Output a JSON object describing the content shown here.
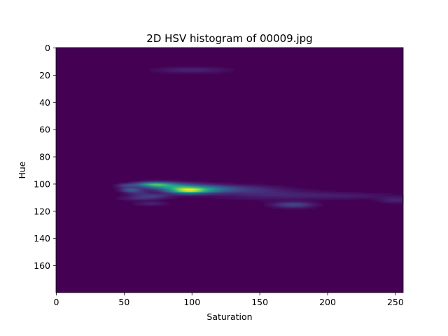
{
  "chart_data": {
    "type": "heatmap",
    "title": "2D HSV histogram of 00009.jpg",
    "xlabel": "Saturation",
    "ylabel": "Hue",
    "xlim": [
      0,
      256
    ],
    "ylim": [
      180,
      0
    ],
    "xticks": [
      0,
      50,
      100,
      150,
      200,
      250
    ],
    "yticks": [
      0,
      20,
      40,
      60,
      80,
      100,
      120,
      140,
      160
    ],
    "colormap": "viridis",
    "background_color": "#440154",
    "grid": false,
    "legend": "none",
    "hotspots": [
      {
        "hue": 16.5,
        "saturation": 100,
        "hue_spread": 1.6,
        "sat_spread": 18,
        "intensity": 0.1
      },
      {
        "hue": 100.5,
        "saturation": 72,
        "hue_spread": 1.2,
        "sat_spread": 9,
        "intensity": 0.5
      },
      {
        "hue": 102,
        "saturation": 85,
        "hue_spread": 1.8,
        "sat_spread": 14,
        "intensity": 0.45
      },
      {
        "hue": 105,
        "saturation": 97,
        "hue_spread": 1.6,
        "sat_spread": 10,
        "intensity": 0.72
      },
      {
        "hue": 104,
        "saturation": 112,
        "hue_spread": 2,
        "sat_spread": 14,
        "intensity": 0.35
      },
      {
        "hue": 104,
        "saturation": 140,
        "hue_spread": 2,
        "sat_spread": 18,
        "intensity": 0.12
      },
      {
        "hue": 108,
        "saturation": 160,
        "hue_spread": 2.5,
        "sat_spread": 28,
        "intensity": 0.1
      },
      {
        "hue": 109,
        "saturation": 215,
        "hue_spread": 1.5,
        "sat_spread": 25,
        "intensity": 0.07
      },
      {
        "hue": 112,
        "saturation": 250,
        "hue_spread": 1.5,
        "sat_spread": 8,
        "intensity": 0.1
      },
      {
        "hue": 115.5,
        "saturation": 175,
        "hue_spread": 1.5,
        "sat_spread": 10,
        "intensity": 0.22
      },
      {
        "hue": 101.5,
        "saturation": 52,
        "hue_spread": 1,
        "sat_spread": 5,
        "intensity": 0.18
      },
      {
        "hue": 104.5,
        "saturation": 55,
        "hue_spread": 1,
        "sat_spread": 5,
        "intensity": 0.3
      },
      {
        "hue": 106.5,
        "saturation": 60,
        "hue_spread": 1,
        "sat_spread": 6,
        "intensity": 0.12
      },
      {
        "hue": 109,
        "saturation": 70,
        "hue_spread": 1.2,
        "sat_spread": 10,
        "intensity": 0.18
      },
      {
        "hue": 111,
        "saturation": 62,
        "hue_spread": 1,
        "sat_spread": 10,
        "intensity": 0.1
      },
      {
        "hue": 114.5,
        "saturation": 70,
        "hue_spread": 1,
        "sat_spread": 8,
        "intensity": 0.1
      }
    ]
  }
}
